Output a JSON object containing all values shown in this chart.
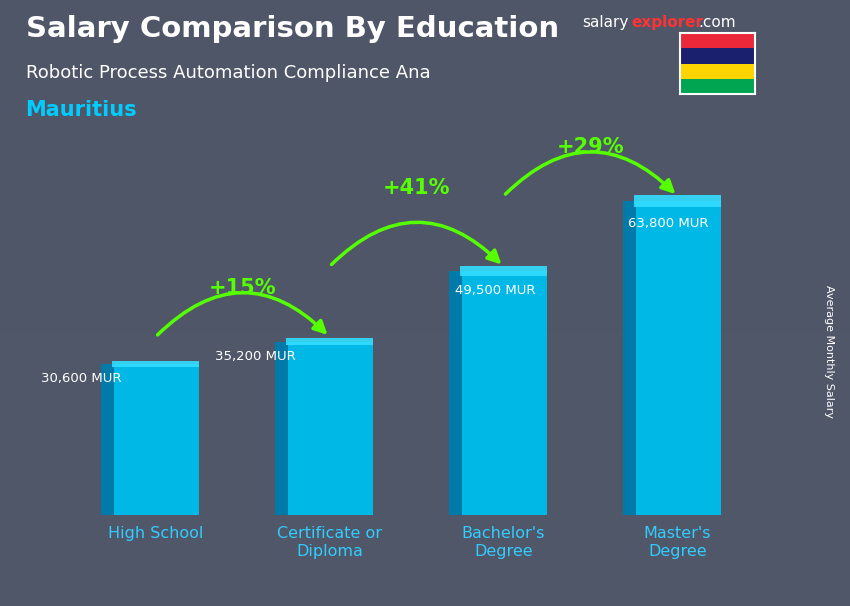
{
  "title_salary": "Salary Comparison By Education",
  "subtitle_job": "Robotic Process Automation Compliance Ana",
  "subtitle_country": "Mauritius",
  "ylabel": "Average Monthly Salary",
  "categories": [
    "High School",
    "Certificate or\nDiploma",
    "Bachelor's\nDegree",
    "Master's\nDegree"
  ],
  "values": [
    30600,
    35200,
    49500,
    63800
  ],
  "value_labels": [
    "30,600 MUR",
    "35,200 MUR",
    "49,500 MUR",
    "63,800 MUR"
  ],
  "pct_changes": [
    "+15%",
    "+41%",
    "+29%"
  ],
  "bar_color_front": "#00b8e6",
  "bar_color_left": "#007aa8",
  "bar_color_top": "#33ddff",
  "arrow_color": "#55ff00",
  "title_color": "#ffffff",
  "subtitle_job_color": "#ffffff",
  "subtitle_country_color": "#00ccff",
  "value_label_color": "#ffffff",
  "pct_color": "#55ff00",
  "ylabel_color": "#ffffff",
  "bg_color": "#4a5060",
  "ylim": [
    0,
    80000
  ],
  "bar_width": 0.5,
  "flag_colors": [
    "#EA2839",
    "#1A206D",
    "#FFD500",
    "#00A551"
  ]
}
